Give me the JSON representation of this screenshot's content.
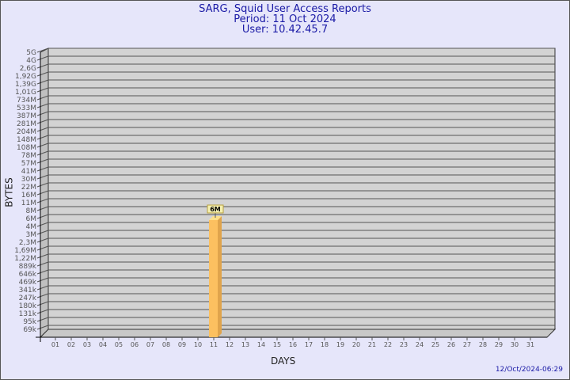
{
  "chart_data": {
    "type": "bar",
    "title": "SARG, Squid User Access Reports",
    "subtitle": [
      "Period: 11 Oct 2024",
      "User: 10.42.45.7"
    ],
    "xlabel": "DAYS",
    "ylabel": "BYTES",
    "categories": [
      "01",
      "02",
      "03",
      "04",
      "05",
      "06",
      "07",
      "08",
      "09",
      "10",
      "11",
      "12",
      "13",
      "14",
      "15",
      "16",
      "17",
      "18",
      "19",
      "20",
      "21",
      "22",
      "23",
      "24",
      "25",
      "26",
      "27",
      "28",
      "29",
      "30",
      "31"
    ],
    "y_ticks": [
      "5G",
      "4G",
      "2,6G",
      "1,92G",
      "1,39G",
      "1,01G",
      "734M",
      "533M",
      "387M",
      "281M",
      "204M",
      "148M",
      "108M",
      "78M",
      "57M",
      "41M",
      "30M",
      "22M",
      "16M",
      "11M",
      "8M",
      "6M",
      "4M",
      "3M",
      "2,3M",
      "1,69M",
      "1,22M",
      "889k",
      "646k",
      "469k",
      "341k",
      "247k",
      "180k",
      "131k",
      "95k",
      "69k"
    ],
    "y_scale": "log",
    "bars": [
      {
        "category": "11",
        "value_label": "6M",
        "tick_level": "6M"
      }
    ],
    "bar_color": "#fcc060",
    "grid": true
  },
  "footer": {
    "timestamp": "12/Oct/2024-06:29"
  }
}
